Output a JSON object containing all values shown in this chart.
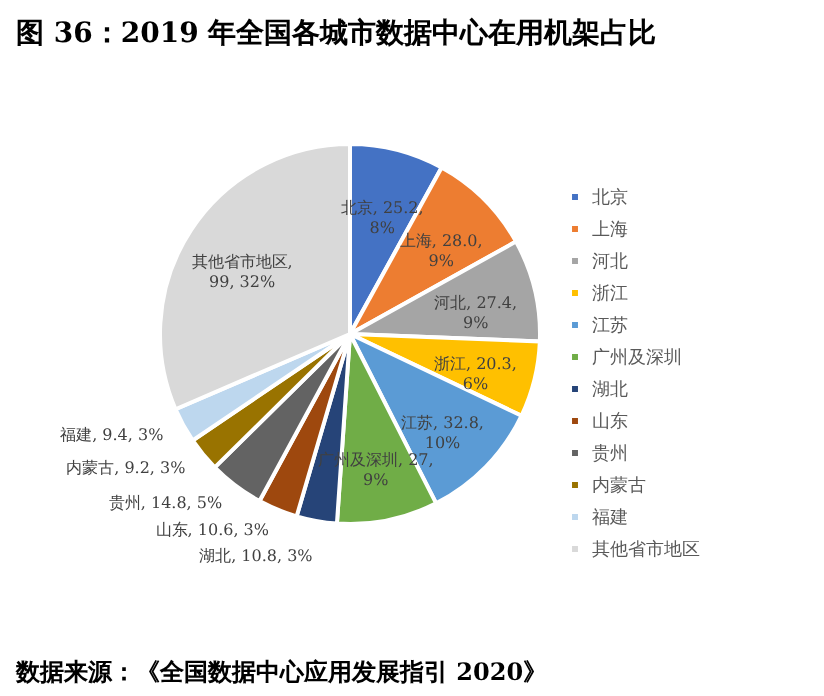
{
  "chart_data": {
    "type": "pie",
    "title": "图 36：2019 年全国各城市数据中心在用机架占比",
    "categories": [
      "北京",
      "上海",
      "河北",
      "浙江",
      "江苏",
      "广州及深圳",
      "湖北",
      "山东",
      "贵州",
      "内蒙古",
      "福建",
      "其他省市地区"
    ],
    "values": [
      25.2,
      28.0,
      27.4,
      20.3,
      32.8,
      27,
      10.8,
      10.6,
      14.8,
      9.2,
      9.4,
      99
    ],
    "colors": [
      "#4472c4",
      "#ed7d31",
      "#a5a5a5",
      "#ffc000",
      "#5b9bd5",
      "#70ad47",
      "#264478",
      "#9e480e",
      "#636363",
      "#997300",
      "#bdd7ee",
      "#d9d9d9"
    ],
    "value_labels": [
      "北京, 25.2, 8%",
      "上海, 28.0, 9%",
      "河北, 27.4, 9%",
      "浙江, 20.3, 6%",
      "江苏, 32.8, 10%",
      "广州及深圳, 27, 9%",
      "湖北, 10.8, 3%",
      "山东, 10.6, 3%",
      "贵州, 14.8, 5%",
      "内蒙古, 9.2, 3%",
      "福建, 9.4, 3%",
      "其他省市地区, 99, 32%"
    ],
    "legend": "right",
    "annotations": [
      "数据来源：《全国数据中心应用发展指引 2020》"
    ]
  }
}
